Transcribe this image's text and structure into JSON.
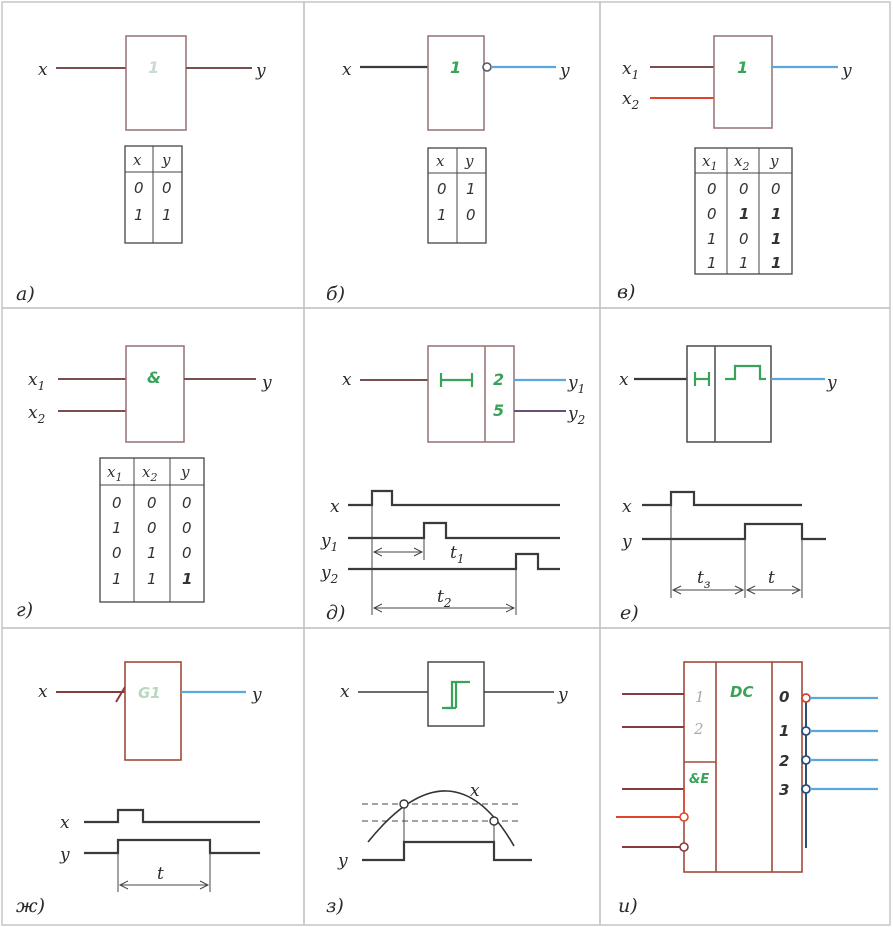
{
  "panels": {
    "a": {
      "caption": "а)",
      "in": "x",
      "out": "y",
      "symbol": "1",
      "table": {
        "headers": [
          "x",
          "y"
        ],
        "rows": [
          [
            "0",
            "0"
          ],
          [
            "1",
            "1"
          ]
        ]
      }
    },
    "b": {
      "caption": "б)",
      "in": "x",
      "out": "y",
      "symbol": "1",
      "table": {
        "headers": [
          "x",
          "y"
        ],
        "rows": [
          [
            "0",
            "1"
          ],
          [
            "1",
            "0"
          ]
        ]
      }
    },
    "v": {
      "caption": "в)",
      "in1": "x",
      "in1_sub": "1",
      "in2": "x",
      "in2_sub": "2",
      "out": "y",
      "symbol": "1",
      "table": {
        "headers": [
          "x1",
          "x2",
          "y"
        ],
        "rows": [
          [
            "0",
            "0",
            "0"
          ],
          [
            "0",
            "1",
            "1"
          ],
          [
            "1",
            "0",
            "1"
          ],
          [
            "1",
            "1",
            "1"
          ]
        ]
      }
    },
    "g": {
      "caption": "г)",
      "in1": "x",
      "in1_sub": "1",
      "in2": "x",
      "in2_sub": "2",
      "out": "y",
      "symbol": "&",
      "table": {
        "headers": [
          "x1",
          "x2",
          "y"
        ],
        "rows": [
          [
            "0",
            "0",
            "0"
          ],
          [
            "1",
            "0",
            "0"
          ],
          [
            "0",
            "1",
            "0"
          ],
          [
            "1",
            "1",
            "1"
          ]
        ]
      }
    },
    "d": {
      "caption": "д)",
      "in": "x",
      "out1": "y",
      "out1_sub": "1",
      "out2": "y",
      "out2_sub": "2",
      "tap1": "2",
      "tap2": "5",
      "t1": "t",
      "t1_sub": "1",
      "t2": "t",
      "t2_sub": "2",
      "trace_x": "x",
      "trace_y1": "y",
      "trace_y1_sub": "1",
      "trace_y2": "y",
      "trace_y2_sub": "2"
    },
    "e": {
      "caption": "е)",
      "in": "x",
      "out": "y",
      "trace_x": "x",
      "trace_y": "y",
      "t_delay": "t",
      "t_delay_sub": "з",
      "t_pulse": "t"
    },
    "zh": {
      "caption": "ж)",
      "in": "x",
      "out": "y",
      "symbol": "G1",
      "trace_x": "x",
      "trace_y": "y",
      "t_pulse": "t"
    },
    "z": {
      "caption": "з)",
      "in": "x",
      "out": "y",
      "curve_label": "x",
      "trace_y": "y"
    },
    "i": {
      "caption": "и)",
      "symbol": "DC",
      "in_a": "1",
      "in_b": "2",
      "enable": "&E",
      "outputs": [
        "0",
        "1",
        "2",
        "3"
      ]
    }
  },
  "colors": {
    "frame": "#c6c6c6",
    "input_wire": "#7a4e4e",
    "output_wire": "#5aa6dd",
    "red_wire": "#e0442c",
    "symbol": "#3aa35a"
  }
}
